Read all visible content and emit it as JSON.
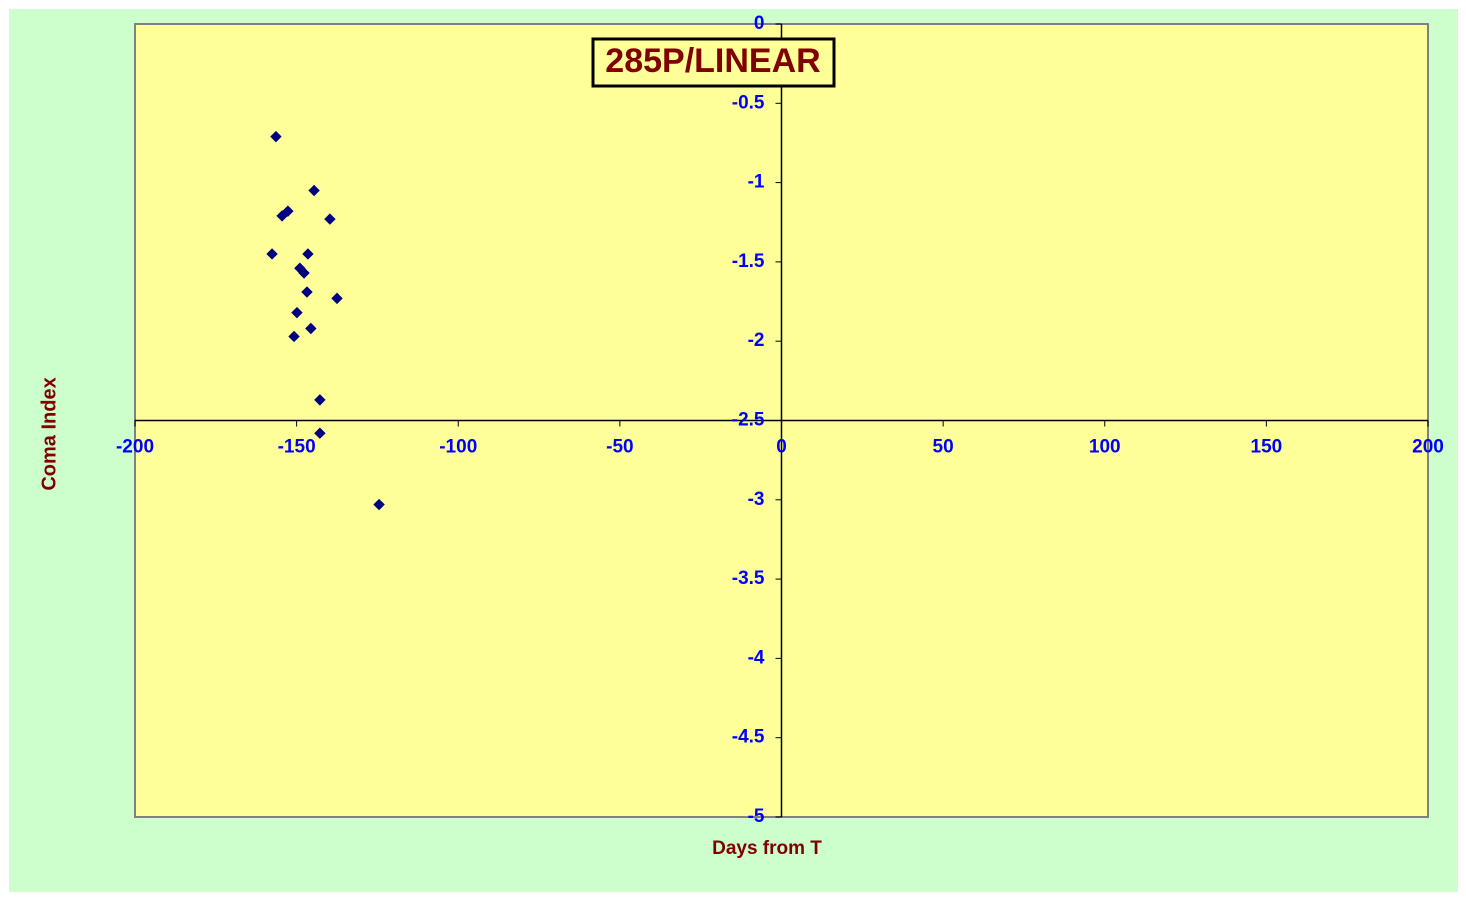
{
  "chart_data": {
    "type": "scatter",
    "title": "285P/LINEAR",
    "x_label": "Days from T",
    "y_label": "Coma Index",
    "series": [
      {
        "color": "#000080",
        "x": [
          -156.4,
          -144.6,
          -152.7,
          -154.5,
          -139.7,
          -157.6,
          -146.5,
          -149.0,
          -147.7,
          -146.8,
          -137.5,
          -149.9,
          -145.6,
          -150.8,
          -142.8,
          -142.8,
          -124.5
        ],
        "values": [
          -0.71,
          -1.05,
          -1.18,
          -1.21,
          -1.23,
          -1.45,
          -1.45,
          -1.54,
          -1.57,
          -1.69,
          -1.73,
          -1.82,
          -1.92,
          -1.97,
          -2.37,
          -2.58,
          -3.03
        ]
      }
    ],
    "xlim": [
      -200,
      200
    ],
    "xticks": [
      -200,
      -150,
      -100,
      -50,
      0,
      50,
      100,
      150,
      200
    ],
    "ylim": [
      -5,
      0
    ],
    "yticks": [
      0,
      -0.5,
      -1,
      -1.5,
      -2,
      -2.5,
      -3,
      -3.5,
      -4,
      -4.5,
      -5
    ],
    "x_axis_at": -2.5,
    "y_axis_at": 0
  }
}
